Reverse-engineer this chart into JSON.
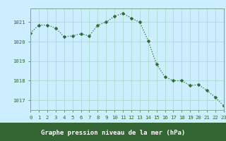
{
  "x": [
    0,
    1,
    2,
    3,
    4,
    5,
    6,
    7,
    8,
    9,
    10,
    11,
    12,
    13,
    14,
    15,
    16,
    17,
    18,
    19,
    20,
    21,
    22,
    23
  ],
  "y": [
    1020.45,
    1020.85,
    1020.85,
    1020.7,
    1020.25,
    1020.3,
    1020.4,
    1020.3,
    1020.85,
    1021.0,
    1021.3,
    1021.45,
    1021.2,
    1021.0,
    1020.05,
    1018.85,
    1018.2,
    1018.0,
    1018.0,
    1017.75,
    1017.8,
    1017.5,
    1017.15,
    1016.7
  ],
  "line_color": "#2d6a2d",
  "marker": "D",
  "marker_size": 2.5,
  "bg_color": "#cceeff",
  "grid_color": "#aaddcc",
  "axis_color": "#2d6a2d",
  "bottom_bar_color": "#336633",
  "xlabel": "Graphe pression niveau de la mer (hPa)",
  "xlim": [
    0,
    23
  ],
  "ylim": [
    1016.5,
    1021.7
  ],
  "yticks": [
    1017,
    1018,
    1019,
    1020,
    1021
  ],
  "xticks": [
    0,
    1,
    2,
    3,
    4,
    5,
    6,
    7,
    8,
    9,
    10,
    11,
    12,
    13,
    14,
    15,
    16,
    17,
    18,
    19,
    20,
    21,
    22,
    23
  ],
  "tick_fontsize": 5.2,
  "xlabel_fontsize": 6.5,
  "spine_color": "#7aaa8a"
}
